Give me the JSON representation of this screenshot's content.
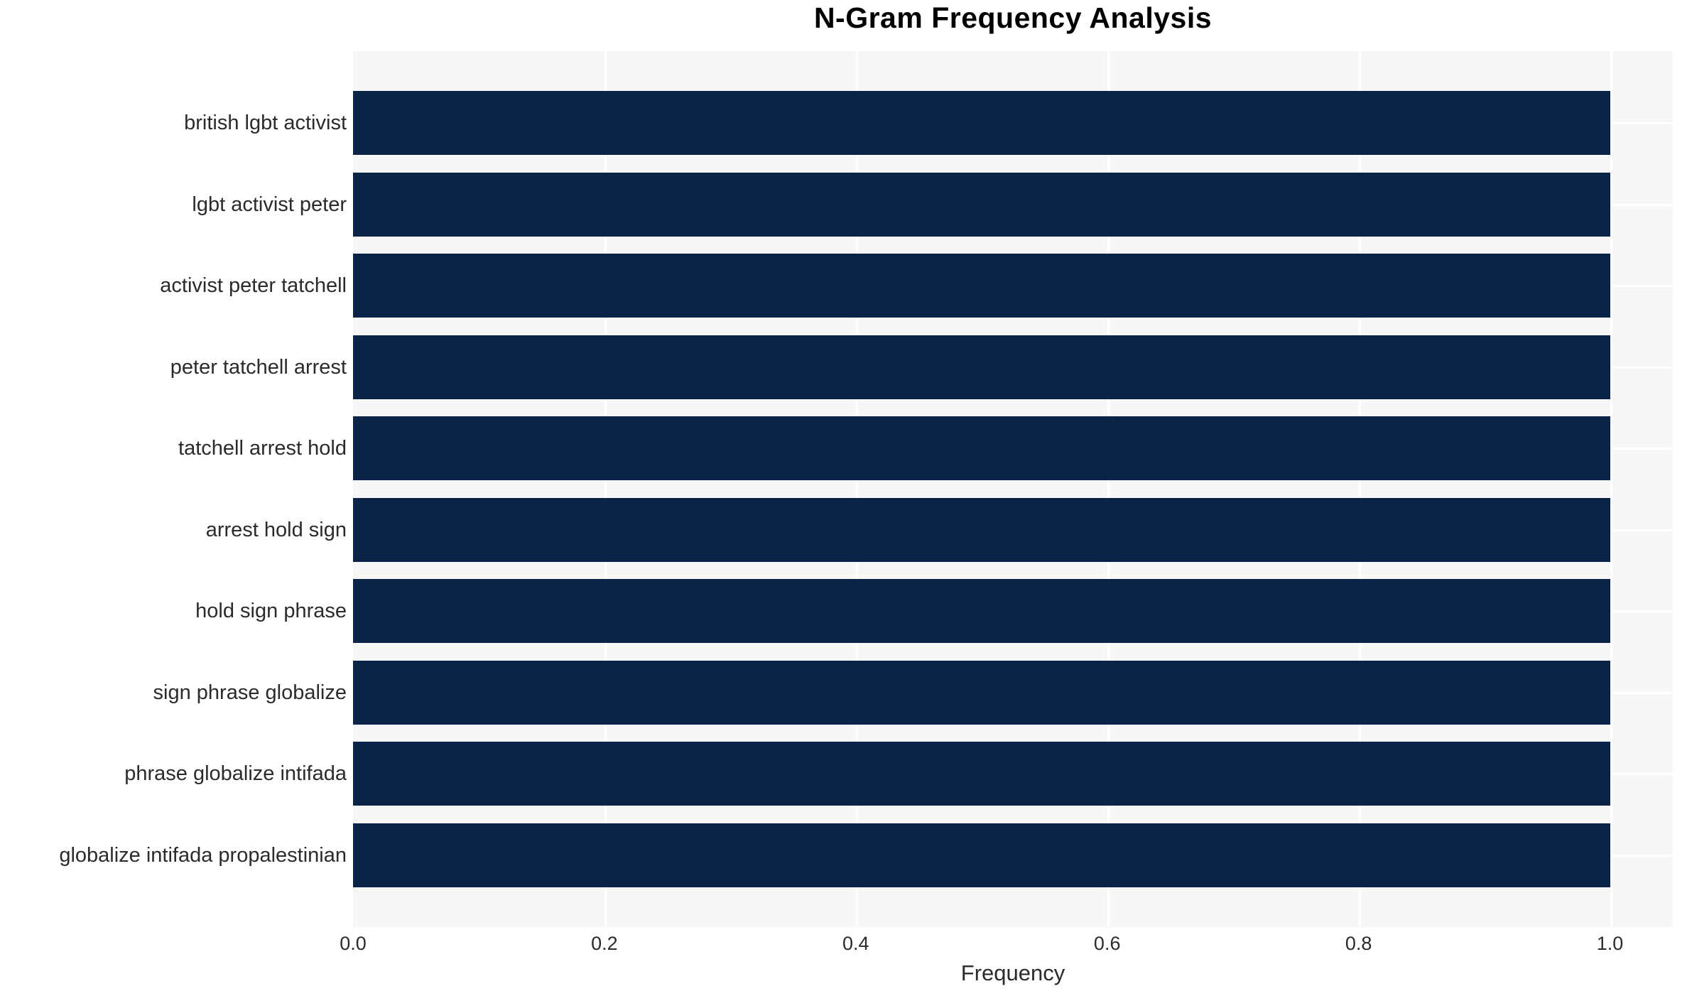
{
  "figure": {
    "background": "#ffffff"
  },
  "chart_data": {
    "type": "bar",
    "orientation": "horizontal",
    "title": "N-Gram Frequency Analysis",
    "xlabel": "Frequency",
    "ylabel": "",
    "categories": [
      "british lgbt activist",
      "lgbt activist peter",
      "activist peter tatchell",
      "peter tatchell arrest",
      "tatchell arrest hold",
      "arrest hold sign",
      "hold sign phrase",
      "sign phrase globalize",
      "phrase globalize intifada",
      "globalize intifada propalestinian"
    ],
    "values": [
      1.0,
      1.0,
      1.0,
      1.0,
      1.0,
      1.0,
      1.0,
      1.0,
      1.0,
      1.0
    ],
    "xticks": [
      "0.0",
      "0.2",
      "0.4",
      "0.6",
      "0.8",
      "1.0"
    ],
    "xtick_values": [
      0.0,
      0.2,
      0.4,
      0.6,
      0.8,
      1.0
    ],
    "xlim": [
      0,
      1.05
    ],
    "grid": "white gridlines on both axes, drawn behind bars",
    "legend": "none",
    "bar_color": "#0a2448",
    "plot_bg": "#f7f7f7",
    "text_color": "#2b2b2b",
    "title_color": "#000000"
  }
}
